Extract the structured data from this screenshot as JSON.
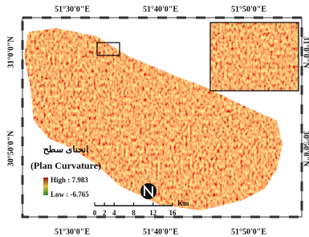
{
  "map": {
    "top_labels": [
      "51°30'0\"E",
      "51°40'0\"E",
      "51°50'0\"E"
    ],
    "bottom_labels": [
      "51°30'0\"E",
      "51°40'0\"E",
      "51°50'0\"E"
    ],
    "left_labels": [
      "31°0'0\"N",
      "30°50'0\"N"
    ],
    "right_labels": [
      "31°0'0\"N",
      "30°50'0\"N"
    ]
  },
  "legend": {
    "title_fa": "انحنای سطح",
    "title": "(Plan Curvature)",
    "high": "High : 7.983",
    "low": "Low : -6.765"
  },
  "scale": {
    "ticks": [
      0,
      2,
      4,
      8,
      12,
      16
    ],
    "unit": "Km"
  }
}
